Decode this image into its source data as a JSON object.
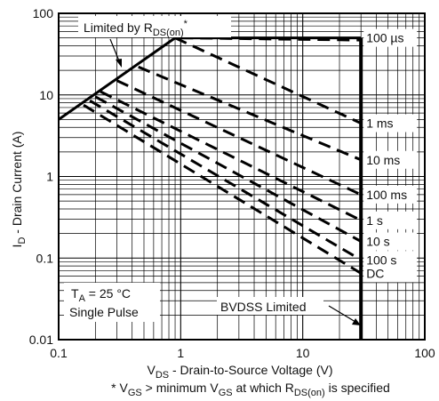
{
  "chart_data": {
    "type": "line",
    "x_scale": "log",
    "y_scale": "log",
    "xlim": [
      0.1,
      100
    ],
    "ylim": [
      0.01,
      100
    ],
    "grid": true,
    "xlabel": {
      "main": "V",
      "sub": "DS",
      "rest": " - Drain-to-Source Voltage (V)"
    },
    "ylabel": {
      "main": "I",
      "sub": "D",
      "rest": " - Drain Current (A)"
    },
    "x_ticks": [
      {
        "value": 0.1,
        "label": "0.1"
      },
      {
        "value": 1,
        "label": "1"
      },
      {
        "value": 10,
        "label": "10"
      },
      {
        "value": 100,
        "label": "100"
      }
    ],
    "y_ticks": [
      {
        "value": 0.01,
        "label": "0.01"
      },
      {
        "value": 0.1,
        "label": "0.1"
      },
      {
        "value": 1,
        "label": "1"
      },
      {
        "value": 10,
        "label": "10"
      },
      {
        "value": 100,
        "label": "100"
      }
    ],
    "footnote": {
      "star": "* V",
      "gs1": "GS",
      "mid": " > minimum V",
      "gs2": "GS",
      "mid2": " at which R",
      "rds": "DS(on)",
      "end": " is specified"
    },
    "annotations": {
      "limited_main": "Limited by R",
      "limited_sub": "DS(on)",
      "limited_star": "*",
      "ta_main": "T",
      "ta_sub": "A",
      "ta_rest": " = 25 °C",
      "single_pulse": "Single Pulse",
      "bvdss": "BVDSS Limited"
    },
    "rdson_limit": {
      "x": [
        0.1,
        0.9
      ],
      "y": [
        5,
        50
      ]
    },
    "current_limit": {
      "value": 50,
      "x_range": [
        0.9,
        30
      ]
    },
    "bvdss_limit": {
      "value": 30
    },
    "series": [
      {
        "name": "100 µs",
        "x": [
          1.0,
          30
        ],
        "y": [
          50,
          47
        ]
      },
      {
        "name": "1 ms",
        "x": [
          0.9,
          30
        ],
        "y": [
          50,
          4.5
        ]
      },
      {
        "name": "10 ms",
        "x": [
          0.45,
          30
        ],
        "y": [
          22,
          1.6
        ]
      },
      {
        "name": "100 ms",
        "x": [
          0.3,
          30
        ],
        "y": [
          15,
          0.6
        ]
      },
      {
        "name": "1 s",
        "x": [
          0.22,
          30
        ],
        "y": [
          11,
          0.29
        ]
      },
      {
        "name": "10 s",
        "x": [
          0.2,
          30
        ],
        "y": [
          9.5,
          0.16
        ]
      },
      {
        "name": "100 s",
        "x": [
          0.18,
          30
        ],
        "y": [
          8.5,
          0.095
        ]
      },
      {
        "name": "DC",
        "x": [
          0.16,
          30
        ],
        "y": [
          7.5,
          0.065
        ]
      }
    ],
    "series_label_y": [
      50,
      4.5,
      1.6,
      0.6,
      0.29,
      0.16,
      0.095,
      0.065
    ]
  }
}
